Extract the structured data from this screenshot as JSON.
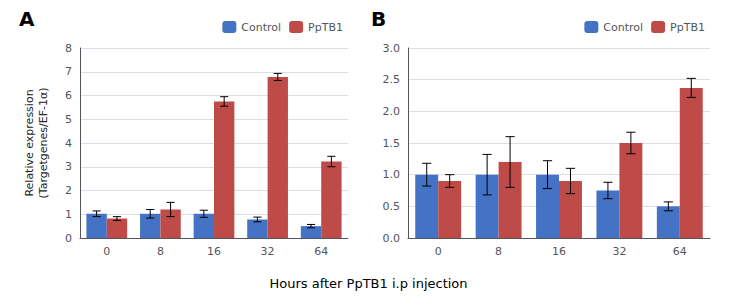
{
  "chart_data": [
    {
      "type": "bar",
      "title": "A",
      "categories": [
        "0",
        "8",
        "16",
        "32",
        "64"
      ],
      "ylabel": "Relative expression\n(Targetgenes/EF-1α)",
      "series": [
        {
          "name": "Control",
          "color": "#4472C4",
          "values": [
            1.02,
            1.02,
            1.02,
            0.78,
            0.5
          ],
          "errors": [
            0.12,
            0.18,
            0.15,
            0.1,
            0.07
          ]
        },
        {
          "name": "PpTB1",
          "color": "#BE4B48",
          "values": [
            0.82,
            1.2,
            5.75,
            6.78,
            3.22
          ],
          "errors": [
            0.08,
            0.3,
            0.2,
            0.15,
            0.22
          ]
        }
      ],
      "ylim": [
        0,
        8
      ],
      "yticks": [
        0,
        1,
        2,
        3,
        4,
        5,
        6,
        7,
        8
      ],
      "grid": true,
      "legend": "upper right"
    },
    {
      "type": "bar",
      "title": "B",
      "categories": [
        "0",
        "8",
        "16",
        "32",
        "64"
      ],
      "series": [
        {
          "name": "Control",
          "color": "#4472C4",
          "values": [
            1.0,
            1.0,
            1.0,
            0.75,
            0.5
          ],
          "errors": [
            0.18,
            0.32,
            0.22,
            0.13,
            0.07
          ]
        },
        {
          "name": "PpTB1",
          "color": "#BE4B48",
          "values": [
            0.9,
            1.2,
            0.9,
            1.5,
            2.37
          ],
          "errors": [
            0.1,
            0.4,
            0.2,
            0.17,
            0.15
          ]
        }
      ],
      "ylim": [
        0,
        3
      ],
      "yticks": [
        {
          "value": 0,
          "label": "0.0"
        },
        0.5,
        {
          "value": 1,
          "label": "1.0"
        },
        1.5,
        {
          "value": 2,
          "label": "2.0"
        },
        2.5,
        {
          "value": 3,
          "label": "3.0"
        }
      ],
      "grid": true,
      "legend": "upper right"
    }
  ],
  "xlabel": "Hours after PpTB1 i.p injection"
}
